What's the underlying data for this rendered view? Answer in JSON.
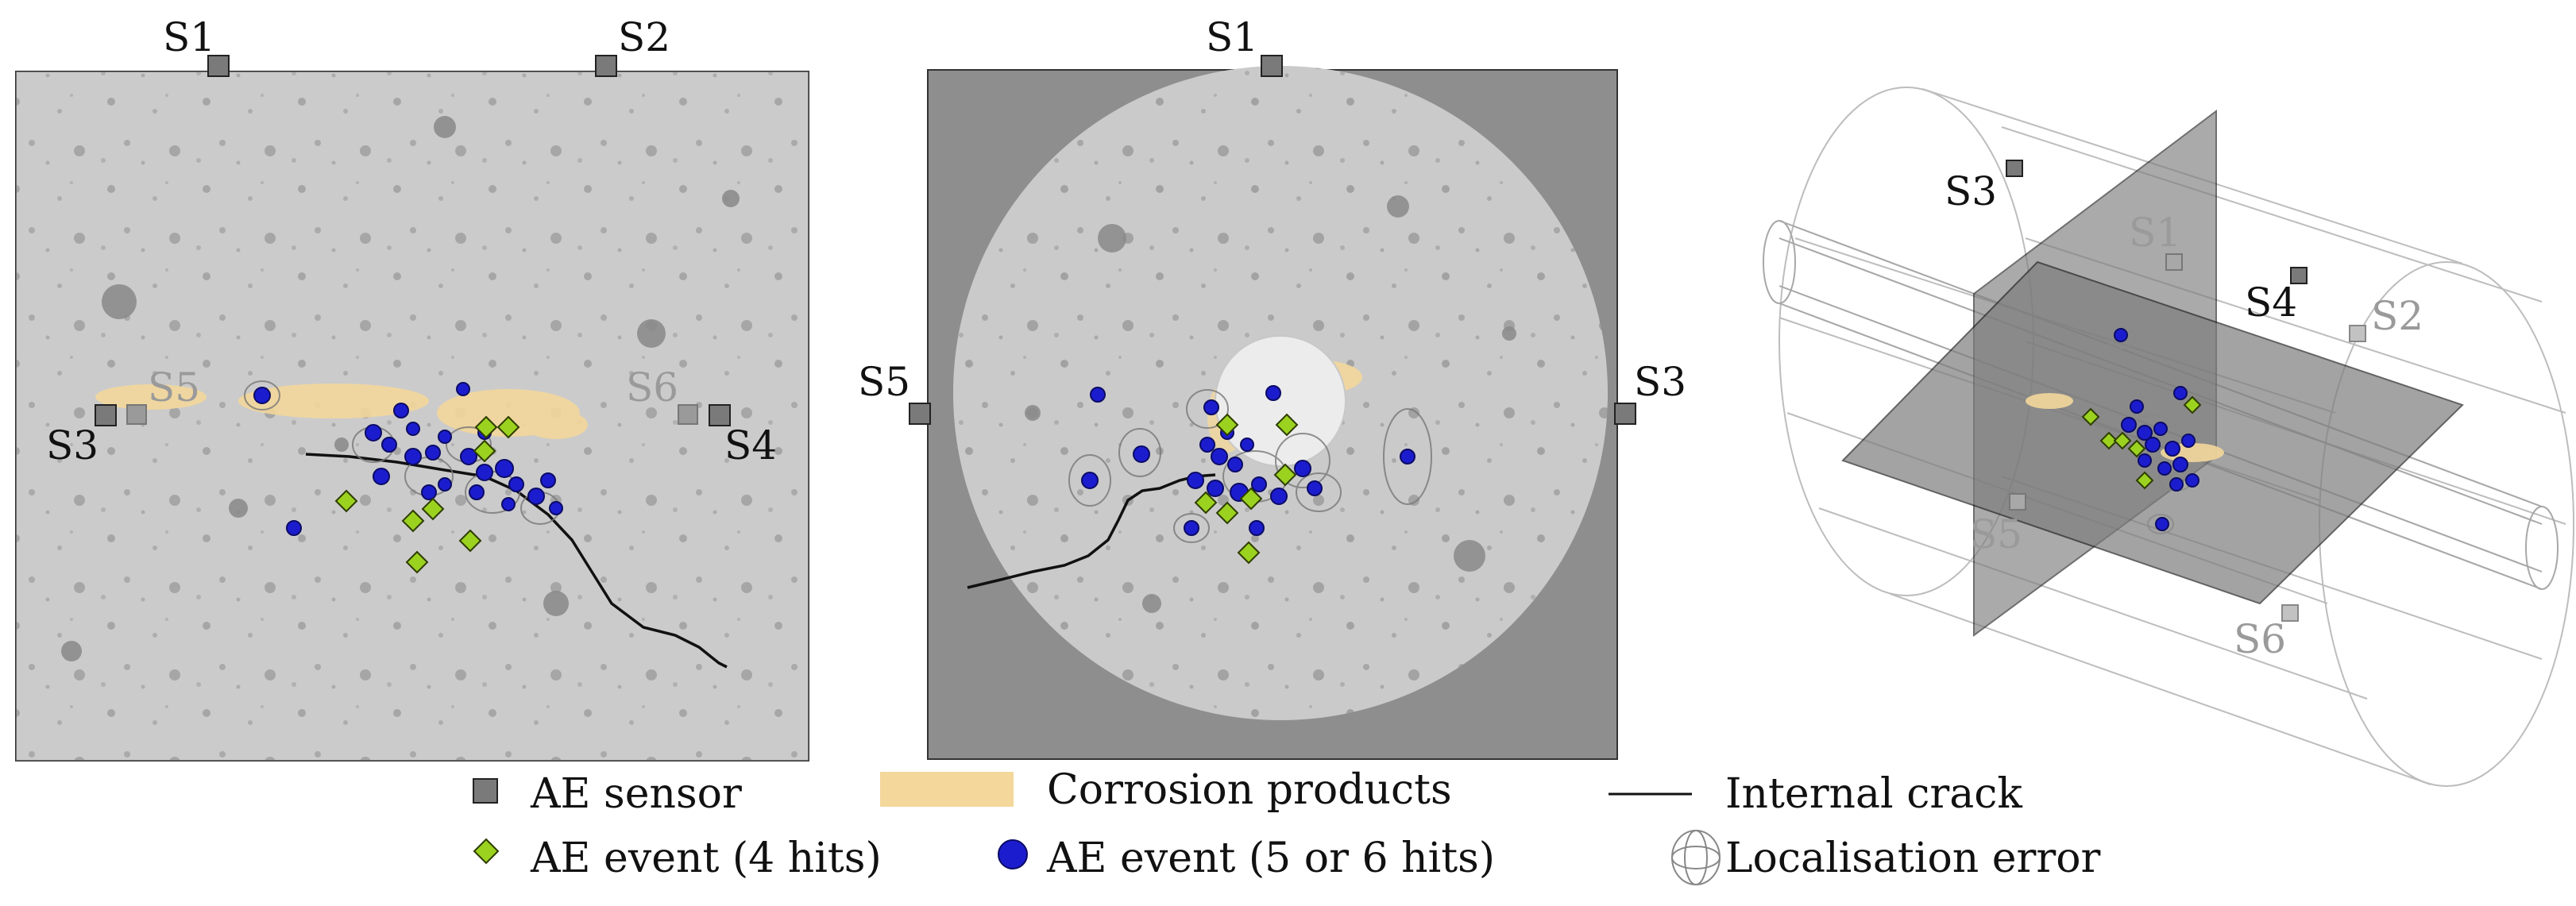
{
  "figure": {
    "panels": [
      {
        "name": "side-view",
        "sensors": [
          {
            "label": "S1",
            "style": "dark"
          },
          {
            "label": "S2",
            "style": "dark"
          },
          {
            "label": "S5",
            "style": "faint"
          },
          {
            "label": "S3",
            "style": "dark"
          },
          {
            "label": "S6",
            "style": "faint"
          },
          {
            "label": "S4",
            "style": "dark"
          }
        ]
      },
      {
        "name": "cross-section",
        "sensors": [
          {
            "label": "S1",
            "style": "dark"
          },
          {
            "label": "S5",
            "style": "dark"
          },
          {
            "label": "S3",
            "style": "dark"
          }
        ]
      },
      {
        "name": "3d-view",
        "sensors": [
          {
            "label": "S3",
            "style": "dark"
          },
          {
            "label": "S1",
            "style": "faint"
          },
          {
            "label": "S4",
            "style": "dark"
          },
          {
            "label": "S2",
            "style": "faint"
          },
          {
            "label": "S5",
            "style": "faint"
          },
          {
            "label": "S6",
            "style": "faint"
          }
        ]
      }
    ],
    "colors": {
      "concrete": "#c9c9c9",
      "background_gray": "#8e8e8e",
      "corrosion": "#f3d79b",
      "event4": "#9bd21f",
      "event56": "#1c1ccf",
      "sensor": "#7a7a7a",
      "crack": "#111111"
    }
  },
  "legend": {
    "items": [
      {
        "key": "sensor",
        "label": "AE sensor"
      },
      {
        "key": "corrosion",
        "label": "Corrosion products"
      },
      {
        "key": "crack",
        "label": "Internal crack"
      },
      {
        "key": "event4",
        "label": "AE event (4 hits)"
      },
      {
        "key": "event56",
        "label": "AE event (5 or 6 hits)"
      },
      {
        "key": "error",
        "label": "Localisation error"
      }
    ]
  }
}
